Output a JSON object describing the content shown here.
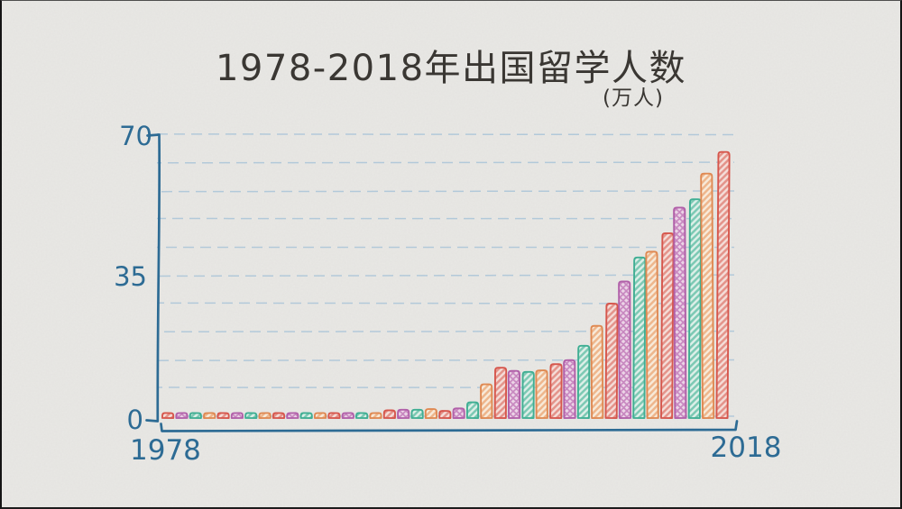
{
  "page": {
    "background_color": "#e9e8e5",
    "frame_border_color": "#141414",
    "style": "hand-drawn sketch bar chart on paper texture"
  },
  "title": "1978-2018年出国留学人数",
  "unit_label": "(万人)",
  "axis": {
    "y_top_label": "70",
    "y_mid_label": "35",
    "y_zero_label": "0",
    "x_left_label": "1978",
    "x_right_label": "2018",
    "axis_color": "#2d6b94",
    "gridline_color": "#adc6d9"
  },
  "chart_data": {
    "type": "bar",
    "title": "1978-2018年出国留学人数",
    "unit": "万人",
    "xlabel": "",
    "ylabel": "万人",
    "ylim": [
      0,
      70
    ],
    "y_ticks_labeled": [
      0,
      35,
      70
    ],
    "gridlines": {
      "style": "dashed",
      "count": 11,
      "interval_value": 7
    },
    "legend": "none",
    "categories": [
      "1978",
      "1979",
      "1980",
      "1981",
      "1982",
      "1983",
      "1984",
      "1985",
      "1986",
      "1987",
      "1988",
      "1989",
      "1990",
      "1991",
      "1992",
      "1993",
      "1994",
      "1995",
      "1996",
      "1997",
      "1998",
      "1999",
      "2000",
      "2001",
      "2002",
      "2003",
      "2004",
      "2005",
      "2006",
      "2007",
      "2008",
      "2009",
      "2010",
      "2011",
      "2012",
      "2013",
      "2014",
      "2015",
      "2016",
      "2017",
      "2018"
    ],
    "values": [
      0.09,
      0.17,
      0.21,
      0.28,
      0.21,
      0.26,
      0.31,
      0.49,
      0.45,
      0.48,
      0.36,
      0.32,
      0.29,
      0.29,
      0.65,
      1.07,
      1.91,
      2.06,
      2.06,
      2.23,
      1.76,
      2.39,
      3.9,
      8.39,
      12.51,
      11.73,
      11.47,
      11.85,
      13.4,
      14.4,
      17.98,
      22.93,
      28.47,
      33.97,
      39.96,
      41.39,
      45.98,
      52.37,
      54.45,
      60.84,
      66.21
    ],
    "color_cycle": [
      {
        "name": "red",
        "stroke": "#d6564c",
        "hatch": "#e4938a",
        "fill": "#f5ddd8",
        "pattern": "diagonal"
      },
      {
        "name": "purple",
        "stroke": "#b160a9",
        "hatch": "#c888c0",
        "fill": "#ecd4e7",
        "pattern": "crosshatch"
      },
      {
        "name": "teal",
        "stroke": "#3fae93",
        "hatch": "#7cc9b4",
        "fill": "#ddefe8",
        "pattern": "diagonal"
      },
      {
        "name": "orange",
        "stroke": "#df8952",
        "hatch": "#eeb68c",
        "fill": "#f8ead9",
        "pattern": "diagonal"
      }
    ],
    "color_cycle_start": "1978 = red, repeating red → purple → teal → orange"
  }
}
